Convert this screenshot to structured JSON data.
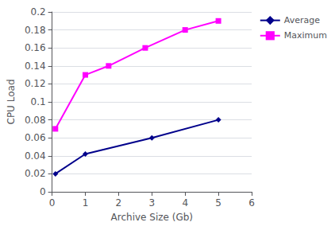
{
  "chart_data": {
    "type": "line",
    "xlabel": "Archive Size (Gb)",
    "ylabel": "CPU Load",
    "series": [
      {
        "name": "Average",
        "color": "#00008B",
        "marker": "diamond",
        "x": [
          0.1,
          1.0,
          3.0,
          5.0
        ],
        "values": [
          0.02,
          0.042,
          0.06,
          0.08
        ]
      },
      {
        "name": "Maximum",
        "color": "#FF00FF",
        "marker": "square",
        "x": [
          0.1,
          1.0,
          1.7,
          2.8,
          4.0,
          5.0
        ],
        "values": [
          0.07,
          0.13,
          0.14,
          0.16,
          0.18,
          0.19
        ]
      }
    ],
    "xlim": [
      0,
      6
    ],
    "xticks": [
      0,
      1,
      2,
      3,
      4,
      5,
      6
    ],
    "ylim": [
      0,
      0.2
    ],
    "yticks": [
      0,
      0.02,
      0.04,
      0.06,
      0.08,
      0.1,
      0.12,
      0.14,
      0.16,
      0.18,
      0.2
    ],
    "grid": "y",
    "legend": "right"
  }
}
